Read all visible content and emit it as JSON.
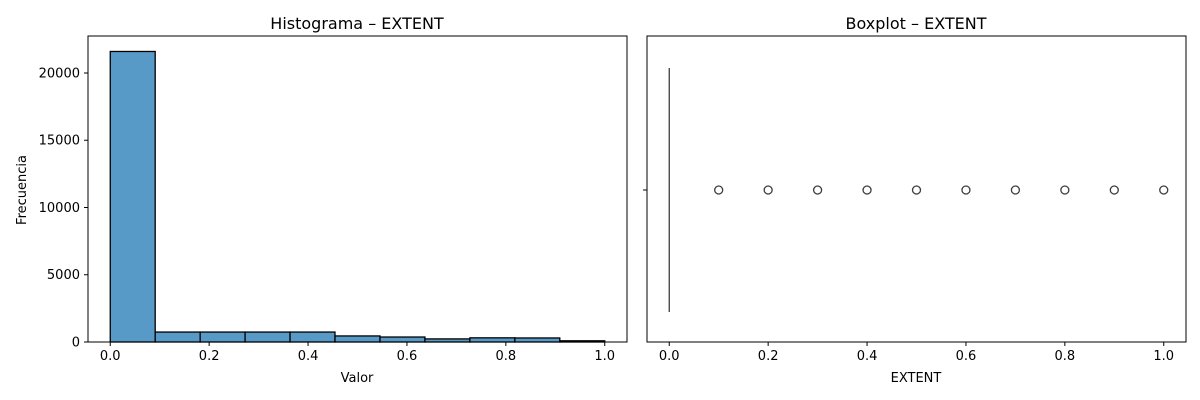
{
  "chart_data": [
    {
      "type": "bar",
      "title": "Histograma – EXTENT",
      "xlabel": "Valor",
      "ylabel": "Frecuencia",
      "xlim": [
        -0.045,
        1.045
      ],
      "ylim": [
        0,
        22750
      ],
      "bin_edges": [
        0.0,
        0.0909,
        0.1818,
        0.2727,
        0.3636,
        0.4545,
        0.5455,
        0.6364,
        0.7273,
        0.8182,
        0.9091,
        1.0
      ],
      "values": [
        21600,
        740,
        740,
        740,
        740,
        450,
        370,
        230,
        310,
        300,
        90
      ],
      "x_ticks": [
        0.0,
        0.2,
        0.4,
        0.6,
        0.8,
        1.0
      ],
      "x_tick_labels": [
        "0.0",
        "0.2",
        "0.4",
        "0.6",
        "0.8",
        "1.0"
      ],
      "y_ticks": [
        0,
        5000,
        10000,
        15000,
        20000
      ],
      "y_tick_labels": [
        "0",
        "5000",
        "10000",
        "15000",
        "20000"
      ],
      "bar_color": "#5799c7"
    },
    {
      "type": "scatter",
      "title": "Boxplot – EXTENT",
      "xlabel": "EXTENT",
      "xlim": [
        -0.045,
        1.045
      ],
      "box": {
        "min": 0.0,
        "q1": 0.0,
        "median": 0.0,
        "q3": 0.0,
        "max": 0.0
      },
      "outliers": [
        0.1,
        0.2,
        0.3,
        0.4,
        0.5,
        0.6,
        0.7,
        0.8,
        0.9,
        1.0
      ],
      "x_ticks": [
        0.0,
        0.2,
        0.4,
        0.6,
        0.8,
        1.0
      ],
      "x_tick_labels": [
        "0.0",
        "0.2",
        "0.4",
        "0.6",
        "0.8",
        "1.0"
      ],
      "line_color": "#3d3d3d"
    }
  ]
}
